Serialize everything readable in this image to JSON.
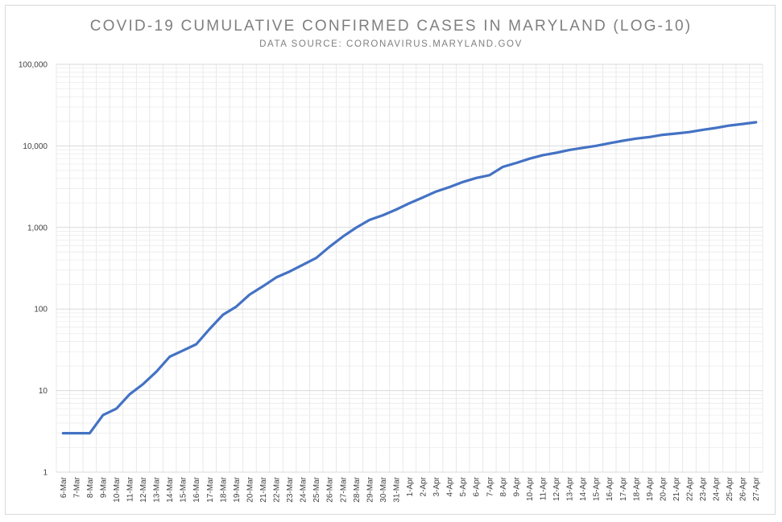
{
  "chart_data": {
    "type": "line",
    "title": "COVID-19 CUMULATIVE CONFIRMED CASES IN MARYLAND (LOG-10)",
    "subtitle": "DATA SOURCE: CORONAVIRUS.MARYLAND.GOV",
    "xlabel": "",
    "ylabel": "",
    "y_scale": "log10",
    "ylim": [
      1,
      100000
    ],
    "y_ticks": [
      1,
      10,
      100,
      1000,
      10000,
      100000
    ],
    "y_tick_labels": [
      "1",
      "10",
      "100",
      "1,000",
      "10,000",
      "100,000"
    ],
    "grid": true,
    "legend": "none",
    "line_color": "#4472c4",
    "categories": [
      "6-Mar",
      "7-Mar",
      "8-Mar",
      "9-Mar",
      "10-Mar",
      "11-Mar",
      "12-Mar",
      "13-Mar",
      "14-Mar",
      "15-Mar",
      "16-Mar",
      "17-Mar",
      "18-Mar",
      "19-Mar",
      "20-Mar",
      "21-Mar",
      "22-Mar",
      "23-Mar",
      "24-Mar",
      "25-Mar",
      "26-Mar",
      "27-Mar",
      "28-Mar",
      "29-Mar",
      "30-Mar",
      "31-Mar",
      "1-Apr",
      "2-Apr",
      "3-Apr",
      "4-Apr",
      "5-Apr",
      "6-Apr",
      "7-Apr",
      "8-Apr",
      "9-Apr",
      "10-Apr",
      "11-Apr",
      "12-Apr",
      "13-Apr",
      "14-Apr",
      "15-Apr",
      "16-Apr",
      "17-Apr",
      "18-Apr",
      "19-Apr",
      "20-Apr",
      "21-Apr",
      "22-Apr",
      "23-Apr",
      "24-Apr",
      "25-Apr",
      "26-Apr",
      "27-Apr"
    ],
    "values": [
      3,
      3,
      3,
      5,
      6,
      9,
      12,
      17,
      26,
      31,
      37,
      57,
      85,
      107,
      150,
      190,
      244,
      288,
      349,
      423,
      580,
      774,
      995,
      1239,
      1413,
      1660,
      1985,
      2331,
      2758,
      3125,
      3609,
      4045,
      4371,
      5529,
      6185,
      6968,
      7694,
      8225,
      8936,
      9472,
      10032,
      10784,
      11572,
      12308,
      12830,
      13684,
      14193,
      14775,
      15737,
      16616,
      17766,
      18581,
      19487
    ]
  }
}
